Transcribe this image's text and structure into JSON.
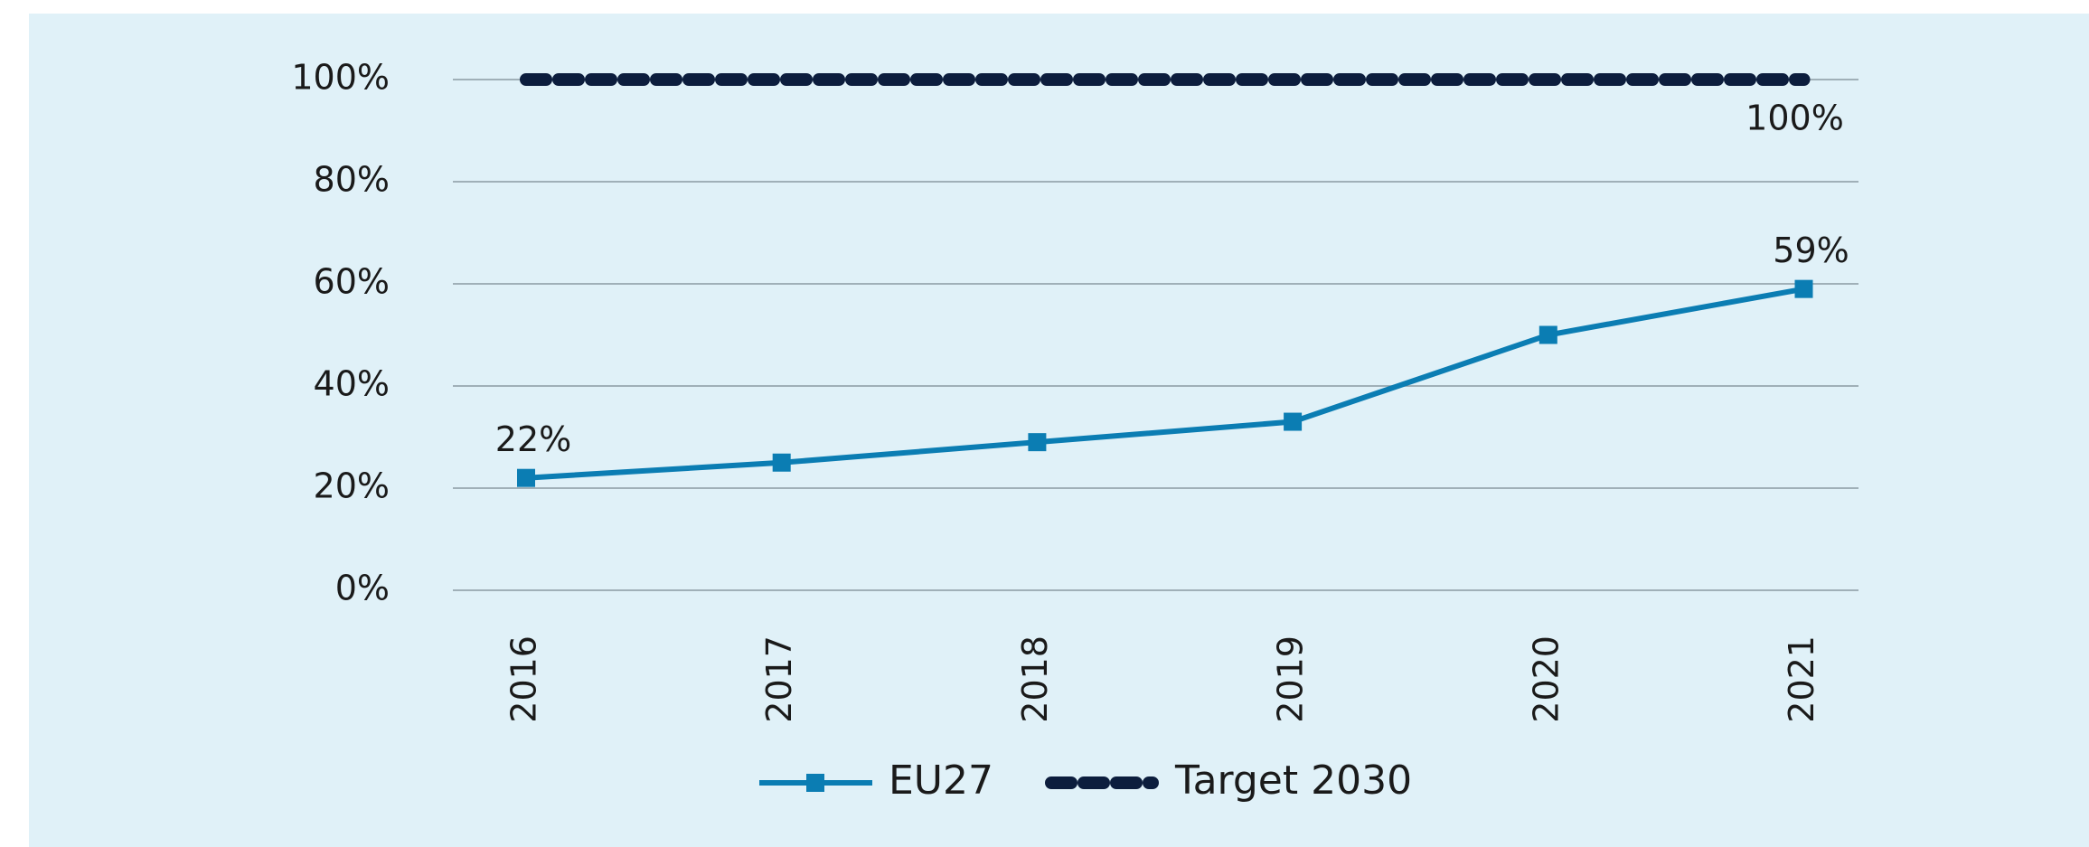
{
  "chart_data": {
    "type": "line",
    "categories": [
      "2016",
      "2017",
      "2018",
      "2019",
      "2020",
      "2021"
    ],
    "series": [
      {
        "name": "EU27",
        "color": "#0b7db3",
        "values": [
          22,
          25,
          29,
          33,
          50,
          59
        ],
        "value_labels": [
          "22%",
          null,
          null,
          null,
          null,
          "59%"
        ]
      },
      {
        "name": "Target 2030",
        "color": "#0c1d3d",
        "values": [
          100,
          100,
          100,
          100,
          100,
          100
        ],
        "value_labels": [
          null,
          null,
          null,
          null,
          null,
          "100%"
        ]
      }
    ],
    "ylim": [
      0,
      100
    ],
    "yticks": [
      {
        "value": 0,
        "label": "0%"
      },
      {
        "value": 20,
        "label": "20%"
      },
      {
        "value": 40,
        "label": "40%"
      },
      {
        "value": 60,
        "label": "60%"
      },
      {
        "value": 80,
        "label": "80%"
      },
      {
        "value": 100,
        "label": "100%"
      }
    ],
    "grid": true,
    "legend": "bottom"
  }
}
